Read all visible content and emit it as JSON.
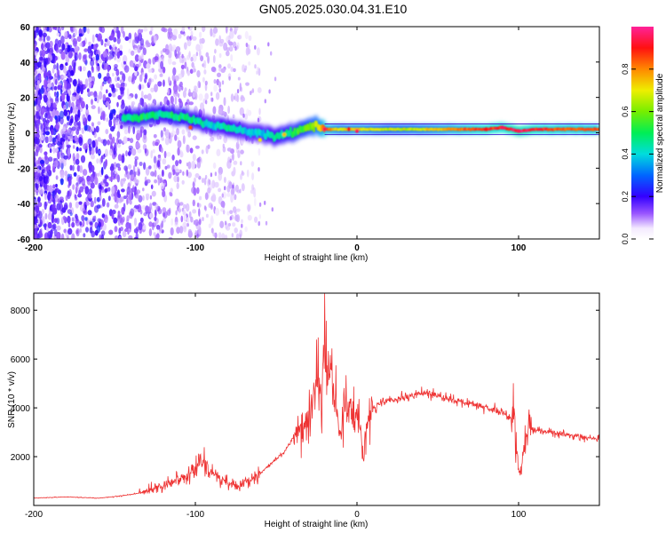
{
  "title": "GN05.2025.030.04.31.E10",
  "chart_data": [
    {
      "type": "heatmap",
      "xlabel": "Height of straight line (km)",
      "ylabel": "Frequency (Hz)",
      "xlim": [
        -200,
        150
      ],
      "ylim": [
        -60,
        60
      ],
      "xticks": [
        -200,
        -100,
        0,
        100
      ],
      "yticks": [
        -60,
        -40,
        -20,
        0,
        20,
        40,
        60
      ],
      "colorbar": {
        "label": "Normalized spectral amplitude",
        "range": [
          0,
          1
        ],
        "ticks": [
          "0.0",
          "0.2",
          "0.4",
          "0.6",
          "0.8"
        ]
      },
      "ridge": {
        "x": [
          -145,
          -130,
          -120,
          -110,
          -100,
          -90,
          -80,
          -70,
          -60,
          -50,
          -40,
          -30,
          -25,
          -20,
          -10,
          0,
          20,
          40,
          60,
          80,
          90,
          100,
          110,
          130,
          150
        ],
        "y": [
          8,
          9,
          10,
          9,
          7,
          4,
          3,
          1,
          0,
          -2,
          0,
          3,
          4,
          2,
          2,
          2,
          2,
          2,
          2,
          2,
          3,
          1,
          2,
          2,
          2
        ],
        "amplitude": [
          0.45,
          0.5,
          0.45,
          0.5,
          0.45,
          0.4,
          0.45,
          0.4,
          0.4,
          0.45,
          0.5,
          0.6,
          0.65,
          0.85,
          0.7,
          0.75,
          0.65,
          0.7,
          0.8,
          0.9,
          0.9,
          0.95,
          0.9,
          0.85,
          0.85
        ]
      }
    },
    {
      "type": "line",
      "xlabel": "Height of straight line (km)",
      "ylabel": "SNR (10 * v/v)",
      "xlim": [
        -200,
        150
      ],
      "ylim": [
        0,
        8700
      ],
      "xticks": [
        -200,
        -100,
        0,
        100
      ],
      "yticks": [
        2000,
        4000,
        6000,
        8000
      ],
      "series": [
        {
          "color": "#ee3333",
          "x": [
            -200,
            -180,
            -160,
            -145,
            -135,
            -125,
            -115,
            -105,
            -100,
            -95,
            -90,
            -85,
            -80,
            -75,
            -70,
            -65,
            -60,
            -55,
            -50,
            -45,
            -40,
            -35,
            -30,
            -25,
            -22,
            -20,
            -18,
            -16,
            -14,
            -12,
            -10,
            -8,
            -6,
            -4,
            -2,
            0,
            2,
            4,
            6,
            8,
            10,
            15,
            20,
            30,
            40,
            50,
            60,
            70,
            80,
            90,
            95,
            98,
            100,
            102,
            104,
            106,
            110,
            120,
            130,
            140,
            150
          ],
          "y": [
            300,
            350,
            300,
            400,
            500,
            700,
            900,
            1300,
            1500,
            1900,
            1400,
            1100,
            900,
            800,
            900,
            1100,
            1300,
            1600,
            1900,
            2200,
            2700,
            3200,
            3400,
            5200,
            4500,
            6500,
            5000,
            5500,
            4500,
            3800,
            3000,
            4800,
            4200,
            3800,
            3500,
            3700,
            3200,
            2000,
            3200,
            3800,
            4000,
            4200,
            4300,
            4400,
            4600,
            4500,
            4300,
            4200,
            4000,
            3800,
            3600,
            3300,
            1500,
            1400,
            3100,
            3200,
            3100,
            3000,
            2900,
            2800,
            2700
          ]
        }
      ]
    }
  ]
}
